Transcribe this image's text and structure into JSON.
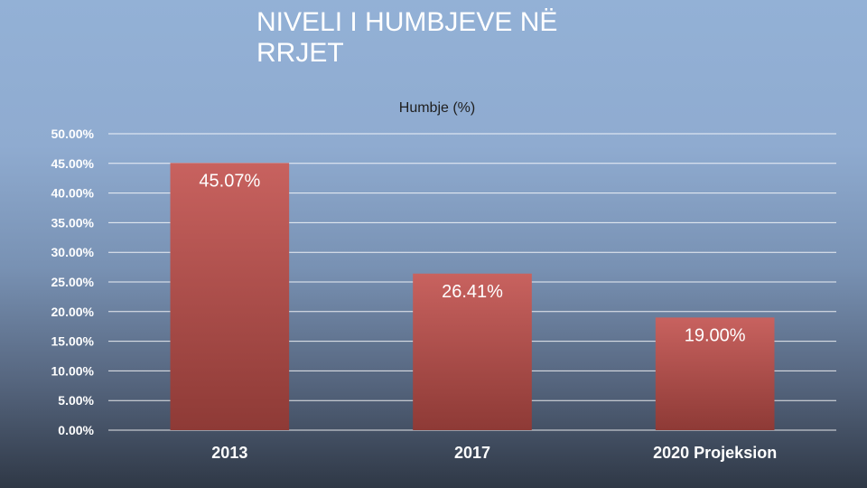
{
  "page": {
    "title": "NIVELI I HUMBJEVE NË RRJET"
  },
  "chart_data": {
    "type": "bar",
    "series_name": "Humbje (%)",
    "categories": [
      "2013",
      "2017",
      "2020 Projeksion"
    ],
    "values": [
      45.07,
      26.41,
      19.0
    ],
    "data_labels": [
      "45.07%",
      "26.41%",
      "19.00%"
    ],
    "ylim": [
      0,
      50
    ],
    "yticks": [
      "0.00%",
      "5.00%",
      "10.00%",
      "15.00%",
      "20.00%",
      "25.00%",
      "30.00%",
      "35.00%",
      "40.00%",
      "45.00%",
      "50.00%"
    ],
    "grid": true,
    "colors": {
      "bar_top": "#c8625f",
      "bar_bottom": "#8e3a36",
      "grid": "#ffffff"
    }
  }
}
